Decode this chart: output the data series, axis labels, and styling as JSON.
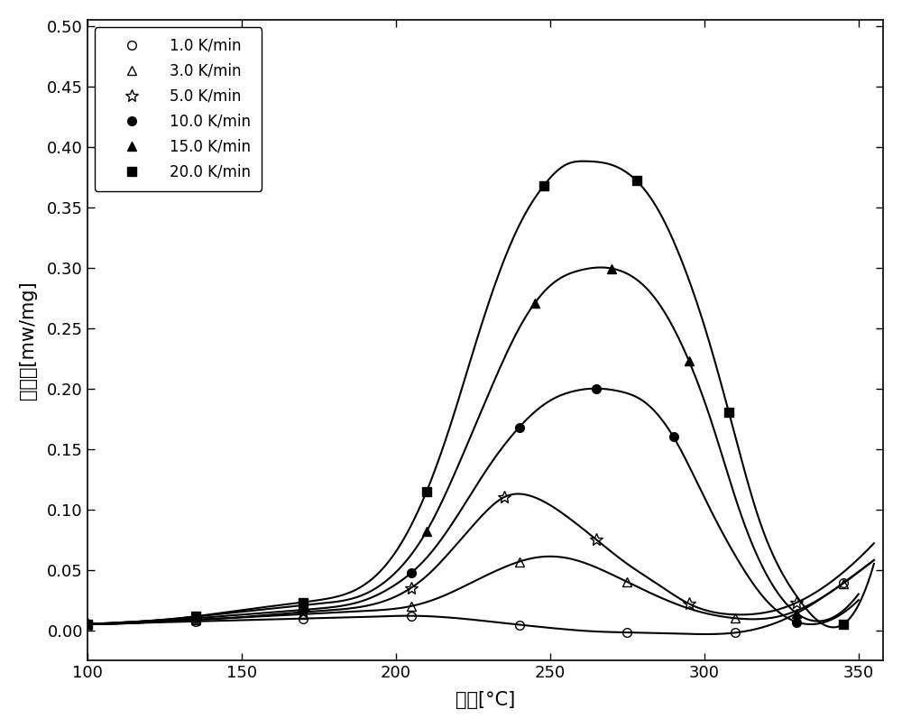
{
  "title": "",
  "xlabel": "温度[°C]",
  "ylabel": "热流量[mw/mg]",
  "xlim": [
    100,
    358
  ],
  "ylim": [
    -0.025,
    0.505
  ],
  "xticks": [
    100,
    150,
    200,
    250,
    300,
    350
  ],
  "yticks": [
    0.0,
    0.05,
    0.1,
    0.15,
    0.2,
    0.25,
    0.3,
    0.35,
    0.4,
    0.45,
    0.5
  ],
  "series": [
    {
      "label": "1.0 K/min",
      "marker": "o",
      "fillstyle": "none",
      "color": "black",
      "x": [
        100,
        115,
        130,
        145,
        160,
        175,
        190,
        205,
        220,
        235,
        250,
        265,
        280,
        295,
        310,
        325,
        340,
        355
      ],
      "y": [
        0.005,
        0.006,
        0.007,
        0.008,
        0.009,
        0.01,
        0.011,
        0.012,
        0.01,
        0.006,
        0.002,
        -0.001,
        -0.002,
        -0.003,
        -0.002,
        0.008,
        0.03,
        0.058
      ]
    },
    {
      "label": "3.0 K/min",
      "marker": "^",
      "fillstyle": "none",
      "color": "black",
      "x": [
        100,
        115,
        130,
        145,
        160,
        175,
        190,
        205,
        215,
        225,
        235,
        245,
        255,
        265,
        275,
        285,
        295,
        310,
        325,
        340,
        355
      ],
      "y": [
        0.005,
        0.006,
        0.008,
        0.01,
        0.012,
        0.014,
        0.016,
        0.02,
        0.028,
        0.04,
        0.052,
        0.06,
        0.06,
        0.052,
        0.04,
        0.028,
        0.018,
        0.01,
        0.012,
        0.03,
        0.058
      ]
    },
    {
      "label": "5.0 K/min",
      "marker": "*",
      "fillstyle": "none",
      "color": "black",
      "x": [
        100,
        115,
        130,
        145,
        160,
        175,
        190,
        200,
        210,
        220,
        228,
        235,
        245,
        255,
        265,
        275,
        285,
        295,
        310,
        325,
        340,
        355
      ],
      "y": [
        0.005,
        0.006,
        0.008,
        0.01,
        0.013,
        0.016,
        0.02,
        0.028,
        0.045,
        0.072,
        0.095,
        0.11,
        0.11,
        0.095,
        0.075,
        0.055,
        0.038,
        0.022,
        0.013,
        0.018,
        0.038,
        0.072
      ]
    },
    {
      "label": "10.0 K/min",
      "marker": "o",
      "fillstyle": "full",
      "color": "black",
      "x": [
        100,
        115,
        130,
        145,
        160,
        175,
        190,
        200,
        210,
        220,
        230,
        240,
        250,
        258,
        265,
        272,
        280,
        290,
        300,
        310,
        320,
        335,
        350
      ],
      "y": [
        0.005,
        0.007,
        0.009,
        0.012,
        0.015,
        0.018,
        0.025,
        0.038,
        0.06,
        0.095,
        0.135,
        0.168,
        0.19,
        0.198,
        0.2,
        0.198,
        0.19,
        0.16,
        0.11,
        0.062,
        0.025,
        0.005,
        0.025
      ]
    },
    {
      "label": "15.0 K/min",
      "marker": "^",
      "fillstyle": "full",
      "color": "black",
      "x": [
        100,
        115,
        130,
        145,
        160,
        175,
        190,
        200,
        210,
        220,
        230,
        240,
        250,
        260,
        268,
        275,
        283,
        292,
        302,
        312,
        322,
        335,
        350
      ],
      "y": [
        0.005,
        0.007,
        0.01,
        0.014,
        0.018,
        0.022,
        0.03,
        0.048,
        0.082,
        0.135,
        0.195,
        0.25,
        0.285,
        0.298,
        0.3,
        0.295,
        0.278,
        0.24,
        0.175,
        0.095,
        0.038,
        0.008,
        0.03
      ]
    },
    {
      "label": "20.0 K/min",
      "marker": "s",
      "fillstyle": "full",
      "color": "black",
      "x": [
        100,
        115,
        130,
        145,
        160,
        175,
        190,
        200,
        210,
        218,
        225,
        232,
        240,
        248,
        255,
        262,
        270,
        278,
        285,
        292,
        300,
        308,
        318,
        330,
        345,
        355
      ],
      "y": [
        0.005,
        0.007,
        0.01,
        0.015,
        0.02,
        0.025,
        0.038,
        0.065,
        0.115,
        0.172,
        0.23,
        0.285,
        0.335,
        0.368,
        0.385,
        0.388,
        0.385,
        0.372,
        0.348,
        0.31,
        0.252,
        0.18,
        0.09,
        0.028,
        0.005,
        0.055
      ]
    }
  ],
  "marker_positions": {
    "1.0 K/min": [
      100,
      135,
      170,
      205,
      240,
      275,
      310,
      345
    ],
    "3.0 K/min": [
      100,
      135,
      170,
      205,
      240,
      275,
      310,
      345
    ],
    "5.0 K/min": [
      100,
      135,
      170,
      205,
      235,
      265,
      295,
      330
    ],
    "10.0 K/min": [
      100,
      135,
      170,
      205,
      240,
      265,
      290,
      330
    ],
    "15.0 K/min": [
      100,
      135,
      170,
      210,
      245,
      270,
      295,
      330
    ],
    "20.0 K/min": [
      100,
      135,
      170,
      210,
      248,
      278,
      308,
      345
    ]
  },
  "legend_loc": "upper left",
  "fig_width": 10.0,
  "fig_height": 8.07,
  "dpi": 100
}
